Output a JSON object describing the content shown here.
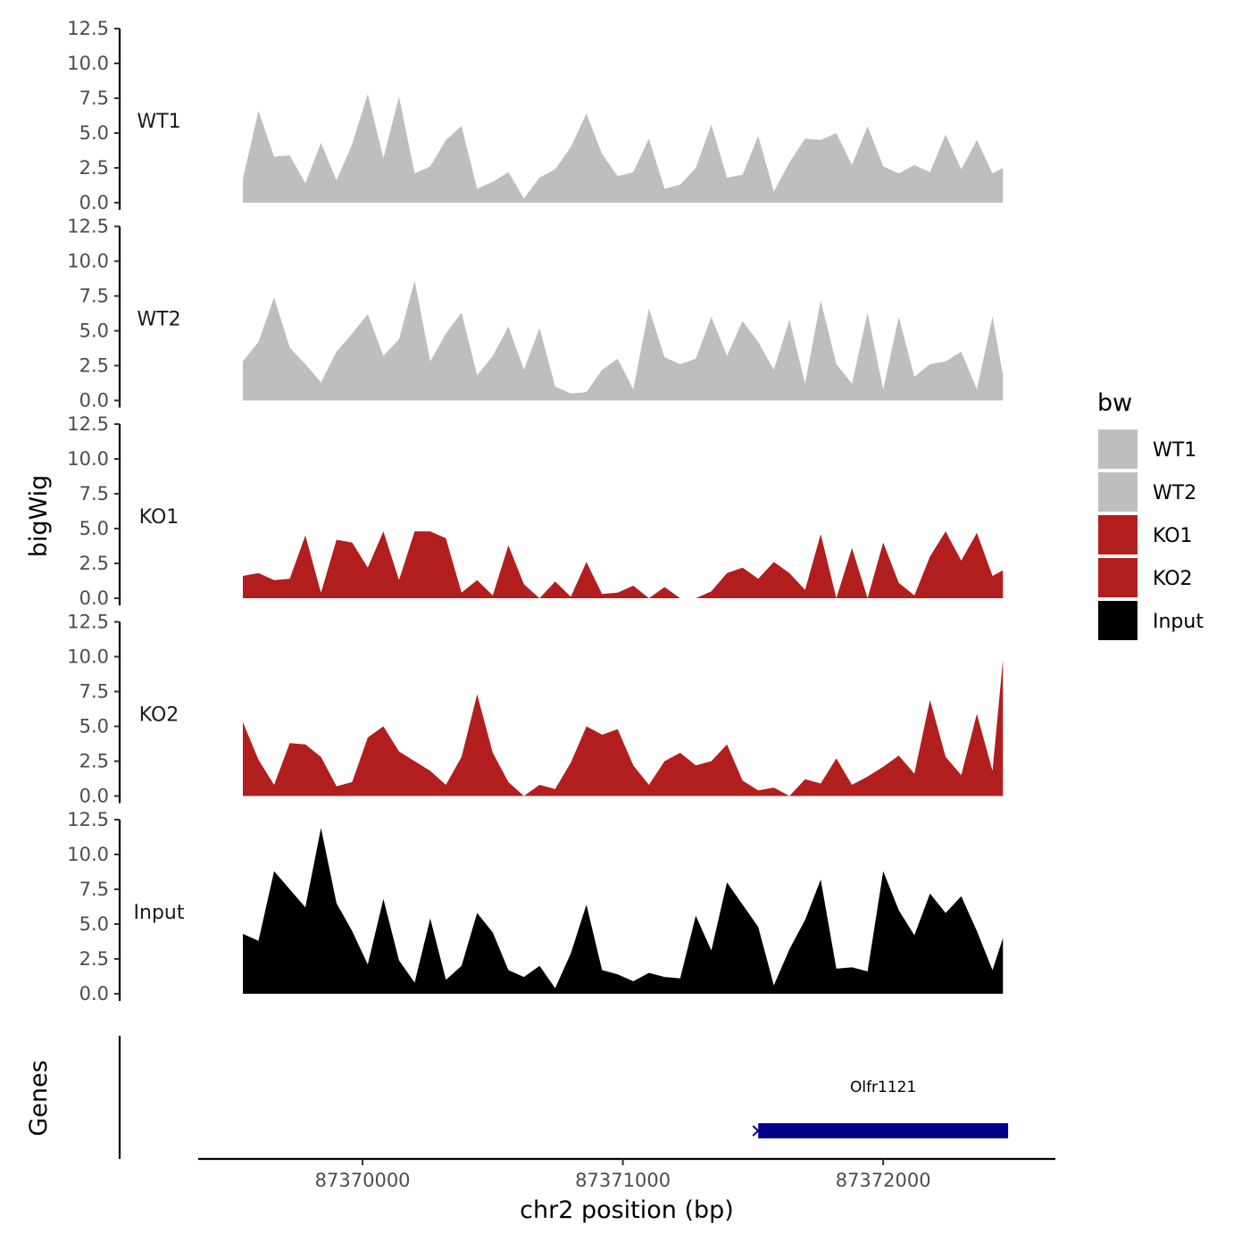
{
  "chart_data": {
    "type": "area",
    "ylabel": "bigWig",
    "xlabel": "chr2 position (bp)",
    "gene_track_label": "Genes",
    "ylim": [
      0,
      12.5
    ],
    "y_ticks": [
      "0.0",
      "2.5",
      "5.0",
      "7.5",
      "10.0",
      "12.5"
    ],
    "x_range": [
      87369540,
      87372490
    ],
    "x_ticks": [
      {
        "value": 87370000,
        "label": "87370000"
      },
      {
        "value": 87371000,
        "label": "87371000"
      },
      {
        "value": 87372000,
        "label": "87372000"
      }
    ],
    "legend": {
      "title": "bw",
      "entries": [
        {
          "name": "WT1",
          "color": "#bebebe"
        },
        {
          "name": "WT2",
          "color": "#bebebe"
        },
        {
          "name": "KO1",
          "color": "#b21e1e"
        },
        {
          "name": "KO2",
          "color": "#b21e1e"
        },
        {
          "name": "Input",
          "color": "#000000"
        }
      ]
    },
    "x": [
      87369540,
      87369600,
      87369660,
      87369720,
      87369780,
      87369840,
      87369900,
      87369960,
      87370020,
      87370080,
      87370140,
      87370200,
      87370260,
      87370320,
      87370380,
      87370440,
      87370500,
      87370560,
      87370620,
      87370680,
      87370740,
      87370800,
      87370860,
      87370920,
      87370980,
      87371040,
      87371100,
      87371160,
      87371220,
      87371280,
      87371340,
      87371400,
      87371460,
      87371520,
      87371580,
      87371640,
      87371700,
      87371760,
      87371820,
      87371880,
      87371940,
      87372000,
      87372060,
      87372120,
      87372180,
      87372240,
      87372300,
      87372360,
      87372420,
      87372460
    ],
    "series": [
      {
        "name": "WT1",
        "color": "#bebebe",
        "values": [
          1.7,
          6.6,
          3.3,
          3.4,
          1.4,
          4.3,
          1.6,
          4.2,
          7.8,
          3.2,
          7.6,
          2.1,
          2.6,
          4.5,
          5.5,
          1.0,
          1.5,
          2.2,
          0.3,
          1.8,
          2.4,
          4.0,
          6.4,
          3.5,
          1.9,
          2.2,
          4.6,
          1.0,
          1.3,
          2.5,
          5.6,
          1.8,
          2.0,
          4.8,
          0.8,
          2.9,
          4.6,
          4.5,
          5.0,
          2.7,
          5.5,
          2.6,
          2.1,
          2.7,
          2.2,
          4.9,
          2.4,
          4.5,
          2.1,
          2.5
        ]
      },
      {
        "name": "WT2",
        "color": "#bebebe",
        "values": [
          2.8,
          4.2,
          7.4,
          3.8,
          2.6,
          1.3,
          3.5,
          4.8,
          6.2,
          3.2,
          4.4,
          8.6,
          2.8,
          4.8,
          6.3,
          1.8,
          3.2,
          5.3,
          2.2,
          5.2,
          1.0,
          0.5,
          0.6,
          2.2,
          3.0,
          0.8,
          6.6,
          3.1,
          2.6,
          3.0,
          6.0,
          3.2,
          5.7,
          4.2,
          2.2,
          5.8,
          1.2,
          7.2,
          2.6,
          1.2,
          6.3,
          0.8,
          6.0,
          1.7,
          2.6,
          2.8,
          3.5,
          0.8,
          6.0,
          1.8
        ]
      },
      {
        "name": "KO1",
        "color": "#b21e1e",
        "values": [
          1.6,
          1.8,
          1.3,
          1.4,
          4.5,
          0.4,
          4.2,
          4.0,
          2.2,
          4.8,
          1.3,
          4.8,
          4.8,
          4.3,
          0.4,
          1.3,
          0.2,
          3.8,
          1.0,
          0.0,
          1.2,
          0.1,
          2.6,
          0.3,
          0.4,
          0.9,
          0.0,
          0.8,
          0.0,
          0.0,
          0.5,
          1.8,
          2.2,
          1.4,
          2.6,
          1.8,
          0.6,
          4.6,
          0.0,
          3.6,
          0.0,
          4.0,
          1.1,
          0.2,
          3.0,
          4.8,
          2.7,
          4.7,
          1.6,
          2.0
        ]
      },
      {
        "name": "KO2",
        "color": "#b21e1e",
        "values": [
          5.3,
          2.6,
          0.8,
          3.8,
          3.7,
          2.8,
          0.7,
          1.0,
          4.2,
          5.0,
          3.2,
          2.5,
          1.8,
          0.8,
          2.8,
          7.3,
          3.1,
          1.0,
          0.0,
          0.8,
          0.5,
          2.4,
          5.0,
          4.4,
          4.8,
          2.2,
          0.8,
          2.5,
          3.1,
          2.2,
          2.5,
          3.7,
          1.1,
          0.4,
          0.6,
          0.0,
          1.2,
          0.9,
          2.7,
          0.8,
          1.4,
          2.1,
          2.9,
          1.6,
          6.9,
          2.8,
          1.5,
          5.9,
          1.8,
          9.8
        ]
      },
      {
        "name": "Input",
        "color": "#000000",
        "values": [
          4.3,
          3.8,
          8.8,
          7.5,
          6.2,
          11.9,
          6.5,
          4.5,
          2.1,
          6.8,
          2.4,
          0.8,
          5.4,
          1.0,
          2.0,
          5.8,
          4.4,
          1.7,
          1.2,
          2.0,
          0.4,
          2.9,
          6.4,
          1.7,
          1.4,
          0.9,
          1.5,
          1.2,
          1.1,
          5.6,
          3.1,
          8.0,
          6.4,
          4.8,
          0.6,
          3.2,
          5.3,
          8.2,
          1.8,
          1.9,
          1.6,
          8.8,
          6.0,
          4.2,
          7.2,
          5.8,
          7.0,
          4.5,
          1.7,
          4.0
        ]
      }
    ],
    "genes": [
      {
        "name": "Olfr1121",
        "start": 87371520,
        "end": 87372480,
        "strand": "-",
        "color": "#00008b"
      }
    ]
  }
}
